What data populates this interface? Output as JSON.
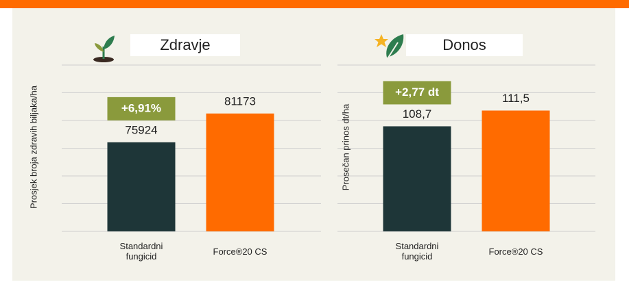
{
  "chart_data": [
    {
      "type": "bar",
      "title": "Zdravje",
      "ylabel": "Prosjek broja zdravih biljaka/ha",
      "categories": [
        "Standardni fungicid",
        "Force®20 CS"
      ],
      "values": [
        75924,
        81173
      ],
      "colors": [
        "#1e3638",
        "#ff6b00"
      ],
      "annotation": "+6,91%",
      "ylim": [
        59700,
        90000
      ],
      "grid": true
    },
    {
      "type": "bar",
      "title": "Donos",
      "ylabel": "Prosečan prinos dt/ha",
      "categories": [
        "Standardni fungicid",
        "Force®20 CS"
      ],
      "values": [
        108.7,
        111.5
      ],
      "value_labels": [
        "108,7",
        "111,5"
      ],
      "colors": [
        "#1e3638",
        "#ff6b00"
      ],
      "annotation": "+2,77 dt",
      "ylim": [
        90,
        119.6
      ],
      "grid": true
    }
  ]
}
